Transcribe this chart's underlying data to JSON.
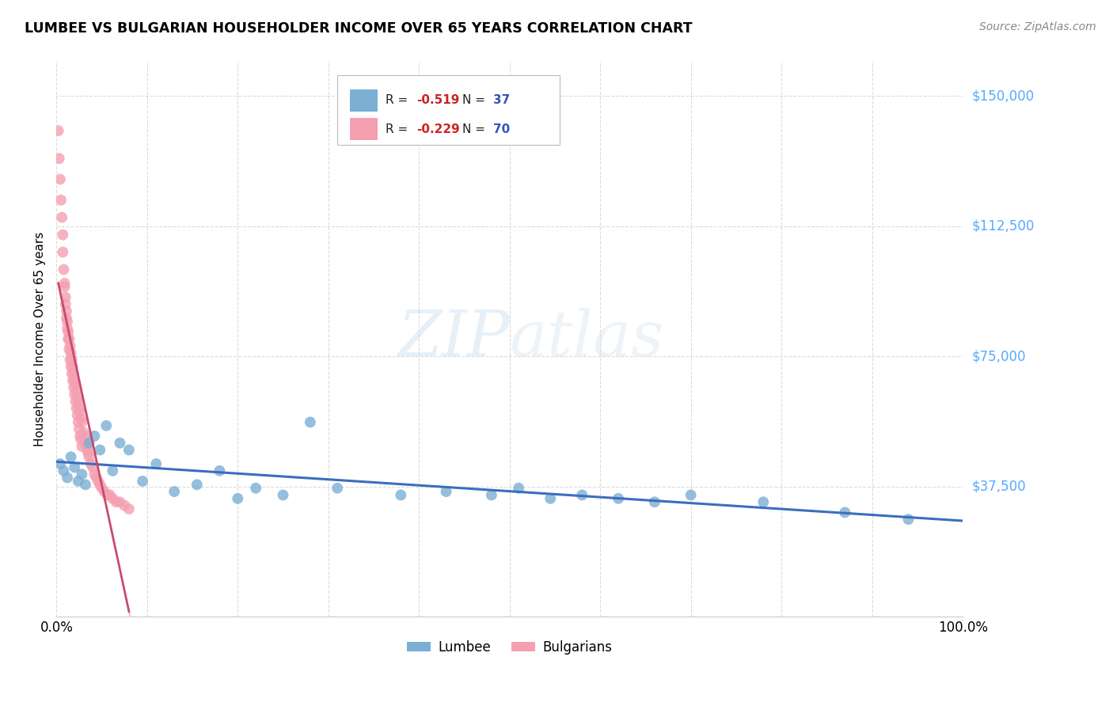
{
  "title": "LUMBEE VS BULGARIAN HOUSEHOLDER INCOME OVER 65 YEARS CORRELATION CHART",
  "source": "Source: ZipAtlas.com",
  "ylabel": "Householder Income Over 65 years",
  "xlim": [
    0,
    1.0
  ],
  "ylim": [
    0,
    160000
  ],
  "yticks": [
    0,
    37500,
    75000,
    112500,
    150000
  ],
  "ytick_labels": [
    "",
    "$37,500",
    "$75,000",
    "$112,500",
    "$150,000"
  ],
  "xticks": [
    0,
    0.1,
    0.2,
    0.3,
    0.4,
    0.5,
    0.6,
    0.7,
    0.8,
    0.9,
    1.0
  ],
  "lumbee_color": "#7BAFD4",
  "bulgarian_color": "#F4A0B0",
  "lumbee_line_color": "#3A6EBF",
  "bulgarian_line_color": "#C84B6E",
  "legend_lumbee_label": "Lumbee",
  "legend_bulgarian_label": "Bulgarians",
  "lumbee_R": "-0.519",
  "lumbee_N": "37",
  "bulgarian_R": "-0.229",
  "bulgarian_N": "70",
  "watermark_zip": "ZIP",
  "watermark_atlas": "atlas",
  "lumbee_x": [
    0.004,
    0.008,
    0.012,
    0.016,
    0.02,
    0.024,
    0.028,
    0.032,
    0.036,
    0.042,
    0.048,
    0.055,
    0.062,
    0.07,
    0.08,
    0.095,
    0.11,
    0.13,
    0.155,
    0.18,
    0.2,
    0.22,
    0.25,
    0.28,
    0.31,
    0.38,
    0.43,
    0.48,
    0.51,
    0.545,
    0.58,
    0.62,
    0.66,
    0.7,
    0.78,
    0.87,
    0.94
  ],
  "lumbee_y": [
    44000,
    42000,
    40000,
    46000,
    43000,
    39000,
    41000,
    38000,
    50000,
    52000,
    48000,
    55000,
    42000,
    50000,
    48000,
    39000,
    44000,
    36000,
    38000,
    42000,
    34000,
    37000,
    35000,
    56000,
    37000,
    35000,
    36000,
    35000,
    37000,
    34000,
    35000,
    34000,
    33000,
    35000,
    33000,
    30000,
    28000
  ],
  "bulgarian_x": [
    0.002,
    0.003,
    0.004,
    0.005,
    0.006,
    0.007,
    0.007,
    0.008,
    0.009,
    0.01,
    0.011,
    0.012,
    0.013,
    0.014,
    0.015,
    0.016,
    0.017,
    0.018,
    0.019,
    0.02,
    0.021,
    0.022,
    0.023,
    0.024,
    0.025,
    0.026,
    0.027,
    0.028,
    0.03,
    0.031,
    0.032,
    0.033,
    0.034,
    0.035,
    0.036,
    0.038,
    0.04,
    0.042,
    0.044,
    0.046,
    0.048,
    0.05,
    0.053,
    0.056,
    0.059,
    0.062,
    0.066,
    0.07,
    0.075,
    0.08,
    0.009,
    0.01,
    0.011,
    0.012,
    0.013,
    0.014,
    0.015,
    0.016,
    0.017,
    0.018,
    0.019,
    0.02,
    0.021,
    0.022,
    0.023,
    0.024,
    0.025,
    0.026,
    0.027,
    0.028
  ],
  "bulgarian_y": [
    140000,
    132000,
    126000,
    120000,
    115000,
    110000,
    105000,
    100000,
    96000,
    92000,
    88000,
    85000,
    82000,
    80000,
    78000,
    76000,
    74000,
    72000,
    70000,
    68000,
    67000,
    65000,
    63000,
    62000,
    60000,
    59000,
    57000,
    56000,
    53000,
    52000,
    50000,
    49000,
    48000,
    47000,
    46000,
    44000,
    43000,
    41000,
    40000,
    39000,
    38000,
    37000,
    36000,
    35000,
    35000,
    34000,
    33000,
    33000,
    32000,
    31000,
    95000,
    90000,
    86000,
    83000,
    80000,
    77000,
    74000,
    72000,
    70000,
    68000,
    66000,
    64000,
    62000,
    60000,
    58000,
    56000,
    54000,
    52000,
    51000,
    49000
  ]
}
